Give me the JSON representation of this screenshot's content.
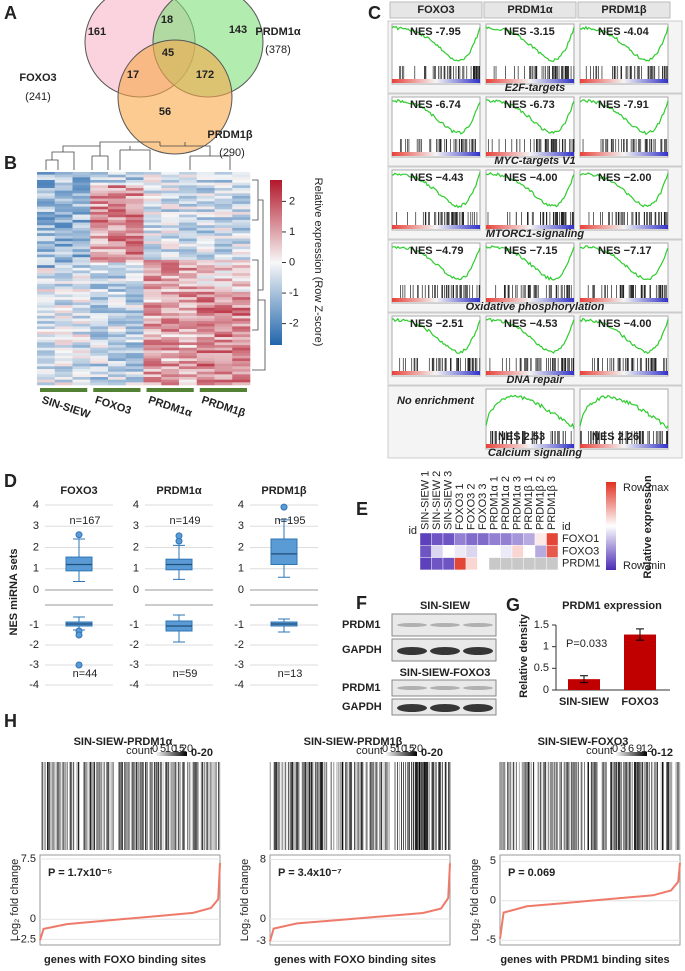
{
  "venn": {
    "letter": "A",
    "sets": [
      {
        "name": "FOXO3",
        "total": "(241)"
      },
      {
        "name": "PRDM1α",
        "total": "(378)"
      },
      {
        "name": "PRDM1β",
        "total": "(290)"
      }
    ],
    "counts": [
      161,
      18,
      143,
      45,
      17,
      172,
      56
    ]
  },
  "heatmap": {
    "letter": "B",
    "groups": [
      "SIN-SIEW",
      "FOXO3",
      "PRDM1α",
      "PRDM1β"
    ],
    "colorbar_label": "Relative expression (Row Z-score)",
    "ticks": [
      2,
      1,
      0,
      -1,
      -2
    ],
    "lim": [
      -2.7,
      2.7
    ]
  },
  "gsea": {
    "letter": "C",
    "columns": [
      "FOXO3",
      "PRDM1α",
      "PRDM1β"
    ],
    "rows": [
      {
        "pathway": "E2F-targets",
        "nes": [
          "NES -7.95",
          "NES -3.15",
          "NES -4.04"
        ]
      },
      {
        "pathway": "MYC-targets V1",
        "nes": [
          "NES -6.74",
          "NES -6.73",
          "NES -7.91"
        ]
      },
      {
        "pathway": "MTORC1-signaling",
        "nes": [
          "NES −4.43",
          "NES −4.00",
          "NES −2.00"
        ]
      },
      {
        "pathway": "Oxidative phosphorylation",
        "nes": [
          "NES −4.79",
          "NES −7.15",
          "NES −7.17"
        ]
      },
      {
        "pathway": "DNA repair",
        "nes": [
          "NES −2.51",
          "NES −4.53",
          "NES −4.00"
        ]
      },
      {
        "pathway": "Calcium signaling",
        "note": "No enrichment",
        "nes": [
          "NES 2.53",
          "NES 2.26"
        ]
      }
    ]
  },
  "nes_boxplot": {
    "letter": "D",
    "ylabel": "NES miRNA sets",
    "top_ylim": [
      0,
      4
    ],
    "top_yticks": [
      4,
      3,
      2,
      1,
      0
    ],
    "bottom_ylim": [
      -4,
      0
    ],
    "bottom_yticks": [
      -1,
      -2,
      -3,
      -4
    ],
    "groups": [
      {
        "name": "FOXO3",
        "n_up": "n=167",
        "n_down": "n=44",
        "up": {
          "min": 0.4,
          "q1": 0.9,
          "median": 1.2,
          "q3": 1.55,
          "max": 2.4,
          "outliers": [
            2.6
          ]
        },
        "down": {
          "min": -1.25,
          "q1": -1.05,
          "median": -0.95,
          "q3": -0.85,
          "max": -0.6,
          "outliers": [
            -1.3,
            -1.5,
            -3
          ]
        }
      },
      {
        "name": "PRDM1α",
        "n_up": "n=149",
        "n_down": "n=59",
        "up": {
          "min": 0.5,
          "q1": 0.95,
          "median": 1.2,
          "q3": 1.45,
          "max": 2.1,
          "outliers": [
            2.3,
            2.55
          ]
        },
        "down": {
          "min": -1.85,
          "q1": -1.3,
          "median": -1.05,
          "q3": -0.8,
          "max": -0.5,
          "outliers": []
        }
      },
      {
        "name": "PRDM1β",
        "n_up": "n=195",
        "n_down": "n=13",
        "up": {
          "min": 0.6,
          "q1": 1.2,
          "median": 1.7,
          "q3": 2.4,
          "max": 3.3,
          "outliers": [
            3.9
          ]
        },
        "down": {
          "min": -1.35,
          "q1": -1.05,
          "median": -0.95,
          "q3": -0.85,
          "max": -0.7,
          "outliers": []
        }
      }
    ]
  },
  "mirna_heatmap": {
    "letter": "E",
    "id_label": "id",
    "columns": [
      "SIN-SIEW 1",
      "SIN-SIEW 2",
      "SIN-SIEW 3",
      "FOXO3 1",
      "FOXO3 2",
      "FOXO3 3",
      "PRDM1α 1",
      "PRDM1α 2",
      "PRDM1α 3",
      "PRDM1β 1",
      "PRDM1β 2",
      "PRDM1β 3"
    ],
    "rows": [
      "FOXO1",
      "FOXO3",
      "PRDM1"
    ],
    "values": [
      [
        0.05,
        0.1,
        0.1,
        0.2,
        0.15,
        0.15,
        0.2,
        0.2,
        0.25,
        0.3,
        0.55,
        0.95
      ],
      [
        0.1,
        0.4,
        0.5,
        0.45,
        0.4,
        0.5,
        0.5,
        0.45,
        0.6,
        0.5,
        0.3,
        0.9
      ],
      [
        0.05,
        0.1,
        0.1,
        0.95,
        0.6,
        0.5,
        null,
        null,
        null,
        null,
        null,
        null
      ]
    ],
    "legend_max": "Row max",
    "legend_title": "Relative expression",
    "legend_min": "Row min"
  },
  "western": {
    "letter": "F",
    "blots": [
      {
        "title": "SIN-SIEW",
        "bands": [
          "PRDM1",
          "GAPDH"
        ]
      },
      {
        "title": "SIN-SIEW-FOXO3",
        "bands": [
          "PRDM1",
          "GAPDH"
        ]
      }
    ]
  },
  "prdm1_expression": {
    "letter": "G",
    "type": "bar",
    "title": "PRDM1 expression",
    "ylabel": "Relative density",
    "categories": [
      "SIN-SIEW",
      "FOXO3"
    ],
    "values": [
      0.25,
      1.28
    ],
    "errors": [
      0.08,
      0.13
    ],
    "color": "#c00000",
    "ylim": [
      0,
      1.5
    ],
    "yticks": [
      0,
      0.5,
      1,
      1.5
    ],
    "annotation": "P=0.033"
  },
  "binding": {
    "letter": "H",
    "count_label": "count",
    "ylabel": "Log₂ fold change",
    "panels": [
      {
        "title": "SIN-SIEW-PRDM1α",
        "count_range": "0-20",
        "count_ticks": [
          0,
          5,
          10,
          15,
          20
        ],
        "pvalue": "P = 1.7x10⁻⁵",
        "xlabel": "genes with FOXO binding sites",
        "ylim": [
          -3.2,
          8
        ],
        "yticks": [
          7.5,
          0,
          -2.5
        ],
        "x": [
          0,
          0.02,
          0.15,
          0.35,
          0.5,
          0.65,
          0.85,
          0.95,
          0.99,
          1
        ],
        "y": [
          -2.6,
          -1.2,
          -0.6,
          -0.2,
          0.1,
          0.4,
          0.8,
          1.4,
          2.5,
          7
        ]
      },
      {
        "title": "SIN-SIEW-PRDM1β",
        "count_range": "0-20",
        "count_ticks": [
          0,
          5,
          10,
          15,
          20
        ],
        "pvalue": "P = 3.4x10⁻⁷",
        "xlabel": "genes with FOXO binding sites",
        "ylim": [
          -3.5,
          8.6
        ],
        "yticks": [
          8,
          0,
          -3
        ],
        "x": [
          0,
          0.02,
          0.15,
          0.35,
          0.5,
          0.65,
          0.85,
          0.95,
          0.99,
          1
        ],
        "y": [
          -3,
          -1.3,
          -0.6,
          -0.2,
          0.1,
          0.4,
          0.8,
          1.4,
          2.8,
          7.5
        ]
      },
      {
        "title": "SIN-SIEW-FOXO3",
        "count_range": "0-12",
        "count_ticks": [
          0,
          3,
          6,
          9,
          12
        ],
        "pvalue": "P = 0.069",
        "xlabel": "genes with PRDM1 binding sites",
        "ylim": [
          -5.6,
          5.8
        ],
        "yticks": [
          5,
          0,
          -5
        ],
        "x": [
          0,
          0.02,
          0.15,
          0.35,
          0.5,
          0.65,
          0.85,
          0.95,
          0.99,
          1
        ],
        "y": [
          -4.8,
          -1.5,
          -0.7,
          -0.3,
          0,
          0.3,
          0.7,
          1.3,
          2.4,
          4.8
        ]
      }
    ]
  }
}
